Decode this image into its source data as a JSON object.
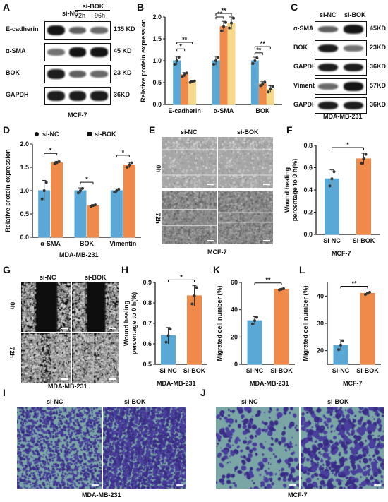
{
  "colors": {
    "blue": "#5aa8d6",
    "orange": "#f08a4b",
    "yellow": "#f7d98b",
    "wound_gray": "#8f8f8f",
    "transwell_bg": "#7aa7a6",
    "transwell_cells": "#3b2d87"
  },
  "panels": {
    "A": {
      "letter": "A",
      "cell_line": "MCF-7",
      "header_left": "si-NC",
      "header_group": "si-BOK",
      "header_sub": [
        "72h",
        "96h"
      ],
      "rows": [
        {
          "label": "E-cadherin",
          "size": "135 KD",
          "intensities": [
            0.95,
            0.55,
            0.5
          ]
        },
        {
          "label": "α-SMA",
          "size": "45 KD",
          "intensities": [
            0.45,
            0.95,
            0.95
          ]
        },
        {
          "label": "BOK",
          "size": "23 KD",
          "intensities": [
            0.9,
            0.55,
            0.5
          ]
        },
        {
          "label": "GAPDH",
          "size": "36KD",
          "intensities": [
            0.9,
            0.9,
            0.9
          ]
        }
      ]
    },
    "B": {
      "letter": "B",
      "chart_data": {
        "type": "bar",
        "ylabel": "Relative protein expression",
        "ylim": [
          0,
          2.0
        ],
        "yticks": [
          "0.0",
          "0.5",
          "1.0",
          "1.5",
          "2.0"
        ],
        "categories": [
          "E-cadherin",
          "α-SMA",
          "BOK"
        ],
        "series": [
          {
            "values": [
              1.0,
              1.0,
              1.0
            ],
            "errors": [
              0.1,
              0.1,
              0.08
            ],
            "color": "#5aa8d6"
          },
          {
            "values": [
              0.68,
              1.78,
              0.47
            ],
            "errors": [
              0.05,
              0.12,
              0.05
            ],
            "color": "#f08a4b"
          },
          {
            "values": [
              0.52,
              1.86,
              0.35
            ],
            "errors": [
              0.02,
              0.14,
              0.08
            ],
            "color": "#f7d98b"
          }
        ],
        "significance": [
          "*",
          "**",
          "**",
          "**",
          "**",
          "**"
        ]
      }
    },
    "C": {
      "letter": "C",
      "cell_line": "MDA-MB-231",
      "header": [
        "si-NC",
        "si-BOK"
      ],
      "rows": [
        {
          "label": "α-SMA",
          "size": "45KD",
          "intensities": [
            0.55,
            0.95
          ]
        },
        {
          "label": "BOK",
          "size": "23KD",
          "intensities": [
            0.9,
            0.45
          ]
        },
        {
          "label": "GAPDH",
          "size": "36KD",
          "intensities": [
            0.9,
            0.9
          ]
        },
        {
          "label": "Vimentin",
          "size": "57KD",
          "intensities": [
            0.5,
            0.95
          ]
        },
        {
          "label": "GAPDH",
          "size": "36KD",
          "intensities": [
            0.9,
            0.9
          ]
        }
      ]
    },
    "D": {
      "letter": "D",
      "caption": "MDA-MB-231",
      "chart_data": {
        "type": "bar",
        "ylabel": "Relative protein  expression",
        "ylim": [
          0,
          2.0
        ],
        "yticks": [
          "0.0",
          "0.5",
          "1.0",
          "1.5",
          "2.0"
        ],
        "categories": [
          "α-SMA",
          "BOK",
          "Vimentin"
        ],
        "legend": [
          "si-NC",
          "si-BOK"
        ],
        "series": [
          {
            "name": "si-NC",
            "values": [
              1.0,
              1.0,
              1.0
            ],
            "errors": [
              0.22,
              0.06,
              0.04
            ],
            "color": "#5aa8d6"
          },
          {
            "name": "si-BOK",
            "values": [
              1.6,
              0.68,
              1.55
            ],
            "errors": [
              0.03,
              0.02,
              0.06
            ],
            "color": "#f08a4b"
          }
        ],
        "significance": [
          "*",
          "*",
          "*"
        ]
      }
    },
    "E": {
      "letter": "E",
      "caption": "MCF-7",
      "columns": [
        "si-NC",
        "si-BOK"
      ],
      "rows": [
        "0h",
        "72h"
      ]
    },
    "F": {
      "letter": "F",
      "caption": "MCF-7",
      "chart_data": {
        "type": "bar",
        "ylabel": "Wound healing\npercentage to 0 h(%)",
        "ylim": [
          0,
          0.8
        ],
        "yticks": [
          "0.0",
          "0.2",
          "0.4",
          "0.6",
          "0.8"
        ],
        "categories": [
          "Si-NC",
          "Si-BOK"
        ],
        "values": [
          0.5,
          0.68
        ],
        "errors": [
          0.08,
          0.05
        ],
        "significance": "*"
      }
    },
    "G": {
      "letter": "G",
      "caption": "MDA-MB-231",
      "columns": [
        "si-NC",
        "si-BOK"
      ],
      "rows": [
        "0h",
        "72h"
      ]
    },
    "H": {
      "letter": "H",
      "caption": "MDA-MB-231",
      "chart_data": {
        "type": "bar",
        "ylabel": "Wound healing\npercentage to 0 h(%)",
        "ylim": [
          0.5,
          0.9
        ],
        "yticks": [
          "0.5",
          "0.6",
          "0.7",
          "0.8",
          "0.9"
        ],
        "categories": [
          "Si-NC",
          "Si-BOK"
        ],
        "values": [
          0.64,
          0.835
        ],
        "errors": [
          0.04,
          0.05
        ],
        "significance": "*"
      }
    },
    "K": {
      "letter": "K",
      "caption": "MDA-MB-231",
      "chart_data": {
        "type": "bar",
        "ylabel": "Migrated cell number (%)",
        "ylim": [
          0,
          60
        ],
        "yticks": [
          "0",
          "20",
          "40",
          "60"
        ],
        "categories": [
          "Si-NC",
          "Si-BOK"
        ],
        "values": [
          32,
          55
        ],
        "errors": [
          3,
          0.5
        ],
        "significance": "**"
      }
    },
    "L": {
      "letter": "L",
      "caption": "MCF-7",
      "chart_data": {
        "type": "bar",
        "ylabel": "Migrated cell number (%)",
        "ylim": [
          15,
          45
        ],
        "yticks": [
          "20",
          "30",
          "40"
        ],
        "categories": [
          "Si-NC",
          "Si-BOK"
        ],
        "values": [
          22,
          41
        ],
        "errors": [
          2,
          0.5
        ],
        "significance": "**"
      }
    },
    "I": {
      "letter": "I",
      "caption": "MDA-MB-231",
      "columns": [
        "si-NC",
        "si-BOK"
      ]
    },
    "J": {
      "letter": "J",
      "caption": "MCF-7",
      "columns": [
        "si-NC",
        "si-BOK"
      ]
    }
  }
}
